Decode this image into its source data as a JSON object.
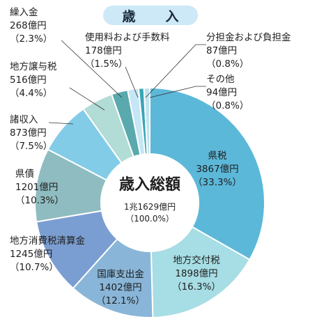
{
  "title": "歳　入",
  "chart_data": {
    "type": "pie",
    "donut": true,
    "center": {
      "title": "歳入総額",
      "total": "1兆1629億円",
      "percent": "（100.0%）"
    },
    "slices": [
      {
        "name": "県税",
        "value": 3867,
        "value_text": "3867億円",
        "percent": "（33.3%）",
        "color": "#5cb8d9"
      },
      {
        "name": "地方交付税",
        "value": 1898,
        "value_text": "1898億円",
        "percent": "（16.3%）",
        "color": "#a7dde4"
      },
      {
        "name": "国庫支出金",
        "value": 1402,
        "value_text": "1402億円",
        "percent": "（12.1%）",
        "color": "#89b6d8"
      },
      {
        "name": "地方消費税清算金",
        "value": 1245,
        "value_text": "1245億円",
        "percent": "（10.7%）",
        "color": "#7b9ed2"
      },
      {
        "name": "県債",
        "value": 1201,
        "value_text": "1201億円",
        "percent": "（10.3%）",
        "color": "#8fbcc0"
      },
      {
        "name": "諸収入",
        "value": 873,
        "value_text": "873億円",
        "percent": "（7.5%）",
        "color": "#83cce8"
      },
      {
        "name": "地方譲与税",
        "value": 516,
        "value_text": "516億円",
        "percent": "（4.4%）",
        "color": "#b2dcd6"
      },
      {
        "name": "繰入金",
        "value": 268,
        "value_text": "268億円",
        "percent": "（2.3%）",
        "color": "#5aa9ad"
      },
      {
        "name": "使用料および手数料",
        "value": 178,
        "value_text": "178億円",
        "percent": "（1.5%）",
        "color": "#c5e6f4"
      },
      {
        "name": "分担金および負担金",
        "value": 87,
        "value_text": "87億円",
        "percent": "（0.8%）",
        "color": "#3aa5b5"
      },
      {
        "name": "その他",
        "value": 94,
        "value_text": "94億円",
        "percent": "（0.8%）",
        "color": "#bfe3ef"
      }
    ]
  }
}
